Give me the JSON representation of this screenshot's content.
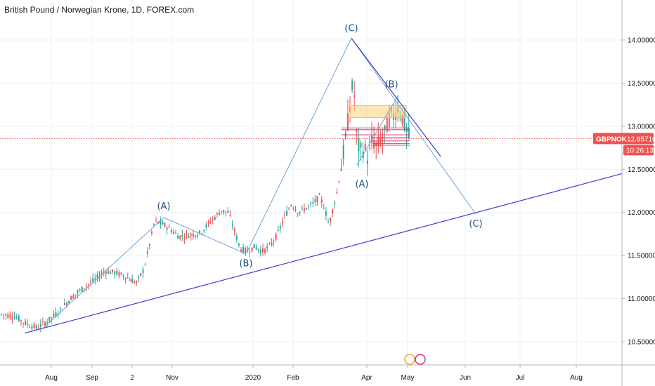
{
  "header": {
    "title": "British Pound / Norwegian Krone, 1D, FOREX.com"
  },
  "price_axis": {
    "labels": [
      "14.00000",
      "13.50000",
      "13.00000",
      "12.50000",
      "12.00000",
      "11.50000",
      "11.00000",
      "10.50000"
    ],
    "values": [
      14.0,
      13.5,
      13.0,
      12.5,
      12.0,
      11.5,
      11.0,
      10.5
    ]
  },
  "time_axis": {
    "labels": [
      "Aug",
      "Sep",
      "2",
      "Nov",
      "2020",
      "Feb",
      "Apr",
      "May",
      "Jun",
      "Jul",
      "Aug"
    ]
  },
  "symbol_tag": {
    "symbol": "GBPNOK",
    "price": "12.85710",
    "countdown": "10:26:13"
  },
  "wave_labels": [
    "(A)",
    "(B)",
    "(C)",
    "(A)",
    "(B)",
    "(C)"
  ],
  "colors": {
    "up": "#26a69a",
    "down": "#ef5350",
    "wave": "#5b9bd5",
    "trend": "#3f3fcc",
    "last_price": "#ef5350",
    "zone": "#ffd27a",
    "bands": "#d6337a"
  },
  "chart_data": {
    "type": "candlestick",
    "title": "British Pound / Norwegian Krone, 1D, FOREX.com",
    "symbol": "GBPNOK",
    "last_price": 12.8571,
    "ylim": [
      10.15,
      14.45
    ],
    "x_tick_labels": [
      "Aug",
      "Sep",
      "2",
      "Nov",
      "2020",
      "Feb",
      "Apr",
      "May",
      "Jun",
      "Jul",
      "Aug"
    ],
    "close_path": [
      [
        0,
        10.82
      ],
      [
        20,
        10.8
      ],
      [
        35,
        10.72
      ],
      [
        52,
        10.66
      ],
      [
        68,
        10.74
      ],
      [
        85,
        10.86
      ],
      [
        100,
        11.0
      ],
      [
        118,
        11.12
      ],
      [
        135,
        11.22
      ],
      [
        150,
        11.32
      ],
      [
        165,
        11.3
      ],
      [
        180,
        11.25
      ],
      [
        195,
        11.18
      ],
      [
        205,
        11.35
      ],
      [
        212,
        11.6
      ],
      [
        220,
        11.9
      ],
      [
        230,
        11.87
      ],
      [
        240,
        11.82
      ],
      [
        255,
        11.72
      ],
      [
        270,
        11.74
      ],
      [
        285,
        11.76
      ],
      [
        300,
        11.9
      ],
      [
        315,
        12.02
      ],
      [
        325,
        12.0
      ],
      [
        333,
        11.8
      ],
      [
        342,
        11.58
      ],
      [
        352,
        11.55
      ],
      [
        362,
        11.6
      ],
      [
        375,
        11.55
      ],
      [
        385,
        11.62
      ],
      [
        395,
        11.75
      ],
      [
        405,
        11.95
      ],
      [
        415,
        12.1
      ],
      [
        425,
        12.0
      ],
      [
        435,
        12.05
      ],
      [
        445,
        12.1
      ],
      [
        455,
        12.18
      ],
      [
        462,
        12.05
      ],
      [
        468,
        11.85
      ],
      [
        474,
        12.05
      ],
      [
        480,
        12.25
      ],
      [
        486,
        12.55
      ],
      [
        492,
        12.85
      ],
      [
        498,
        13.25
      ],
      [
        503,
        13.55
      ],
      [
        507,
        12.9
      ],
      [
        512,
        12.7
      ],
      [
        518,
        12.75
      ],
      [
        524,
        12.62
      ],
      [
        530,
        12.85
      ],
      [
        536,
        12.75
      ],
      [
        542,
        12.85
      ],
      [
        548,
        12.92
      ],
      [
        554,
        13.1
      ],
      [
        560,
        13.12
      ],
      [
        566,
        13.22
      ],
      [
        572,
        13.12
      ],
      [
        578,
        12.95
      ],
      [
        582,
        12.86
      ]
    ],
    "waves": {
      "left": [
        [
          60,
          10.65
        ],
        [
          233,
          11.94
        ],
        [
          350,
          11.52
        ],
        [
          500,
          14.02
        ],
        [
          677,
          11.98
        ]
      ],
      "right": [
        [
          508,
          12.55
        ],
        [
          566,
          13.35
        ]
      ]
    },
    "trendlines": [
      {
        "from": [
          35,
          10.6
        ],
        "to": [
          885,
          12.45
        ]
      },
      {
        "from": [
          500,
          14.02
        ],
        "to": [
          627,
          12.65
        ]
      }
    ],
    "zone": [
      13.24,
      13.1
    ],
    "bands": [
      12.98,
      12.96,
      12.9,
      12.87,
      12.83,
      12.8,
      12.78
    ],
    "wave_points": [
      [
        233,
        11.94
      ],
      [
        350,
        11.52
      ],
      [
        500,
        14.02
      ],
      [
        515,
        12.44
      ],
      [
        557,
        13.37
      ],
      [
        677,
        11.98
      ]
    ]
  }
}
